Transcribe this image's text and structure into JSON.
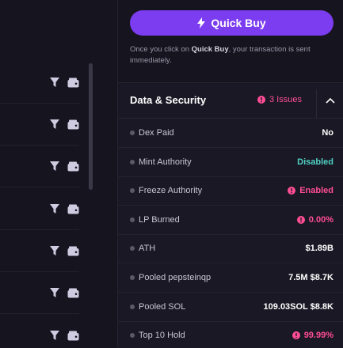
{
  "quick_buy": {
    "label": "Quick Buy",
    "note_prefix": "Once you click on ",
    "note_bold": "Quick Buy",
    "note_suffix": ", your transaction is sent immediately."
  },
  "panel": {
    "title": "Data & Security",
    "issues_label": "3 Issues",
    "rows": [
      {
        "label": "Dex Paid",
        "value": "No",
        "tone": "white",
        "alert": false
      },
      {
        "label": "Mint Authority",
        "value": "Disabled",
        "tone": "teal",
        "alert": false
      },
      {
        "label": "Freeze Authority",
        "value": "Enabled",
        "tone": "pink",
        "alert": true
      },
      {
        "label": "LP Burned",
        "value": "0.00%",
        "tone": "pink",
        "alert": true
      },
      {
        "label": "ATH",
        "value": "$1.89B",
        "tone": "white",
        "alert": false
      },
      {
        "label": "Pooled pepsteinqp",
        "value": "7.5M $8.7K",
        "tone": "white",
        "alert": false
      },
      {
        "label": "Pooled SOL",
        "value": "109.03SOL $8.8K",
        "tone": "white",
        "alert": false
      },
      {
        "label": "Top 10 Hold",
        "value": "99.99%",
        "tone": "pink",
        "alert": true
      }
    ]
  },
  "colors": {
    "accent": "#7c3cf0",
    "danger": "#ff4d94",
    "success": "#4fd1c5"
  },
  "icons": {
    "row_icons": [
      "filter-icon",
      "wallet-icon"
    ],
    "chevron": "chevron-up-icon",
    "alert": "alert-icon",
    "bolt": "lightning-icon"
  }
}
